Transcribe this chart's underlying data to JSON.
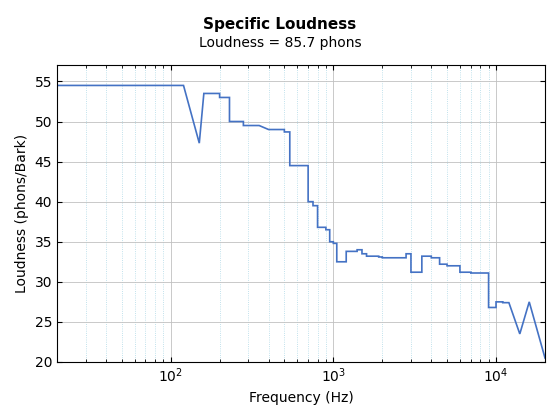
{
  "title": "Specific Loudness",
  "subtitle": "Loudness = 85.7 phons",
  "xlabel": "Frequency (Hz)",
  "ylabel": "Loudness (phons/Bark)",
  "line_color": "#4472C4",
  "bg_color": "#FFFFFF",
  "xlim": [
    20,
    20000
  ],
  "ylim": [
    20,
    57
  ],
  "yticks": [
    20,
    25,
    30,
    35,
    40,
    45,
    50,
    55
  ],
  "x": [
    20,
    80,
    80,
    120,
    120,
    150,
    150,
    160,
    160,
    200,
    200,
    230,
    230,
    280,
    280,
    350,
    350,
    400,
    400,
    500,
    500,
    540,
    540,
    700,
    700,
    750,
    750,
    800,
    800,
    900,
    900,
    950,
    950,
    1000,
    1000,
    1050,
    1050,
    1200,
    1200,
    1400,
    1400,
    1500,
    1500,
    1600,
    1600,
    1900,
    1900,
    2000,
    2000,
    2800,
    2800,
    3000,
    3000,
    3500,
    3500,
    4000,
    4000,
    4500,
    4500,
    5000,
    5000,
    6000,
    6000,
    7000,
    7000,
    8000,
    8000,
    9000,
    9000,
    10000,
    10000,
    11000,
    11000,
    12000,
    12000,
    14000,
    14000,
    16000,
    16000,
    20000
  ],
  "y": [
    54.5,
    54.5,
    54.5,
    54.5,
    54.5,
    47.3,
    47.3,
    53.5,
    53.5,
    53.5,
    53.0,
    53.0,
    50.0,
    50.0,
    49.5,
    49.5,
    49.5,
    49.0,
    49.0,
    49.0,
    48.7,
    48.7,
    44.5,
    44.5,
    40.0,
    40.0,
    39.5,
    39.5,
    36.8,
    36.8,
    36.5,
    36.5,
    35.0,
    35.0,
    34.8,
    34.8,
    32.5,
    32.5,
    33.8,
    33.8,
    34.0,
    34.0,
    33.5,
    33.5,
    33.2,
    33.2,
    33.1,
    33.1,
    33.0,
    33.0,
    33.5,
    33.5,
    31.2,
    31.2,
    33.2,
    33.2,
    33.0,
    33.0,
    32.2,
    32.2,
    32.0,
    32.0,
    31.2,
    31.2,
    31.1,
    31.1,
    31.1,
    31.1,
    26.8,
    26.8,
    27.5,
    27.5,
    27.4,
    27.4,
    27.4,
    23.5,
    23.5,
    27.5,
    27.5,
    20.5
  ]
}
